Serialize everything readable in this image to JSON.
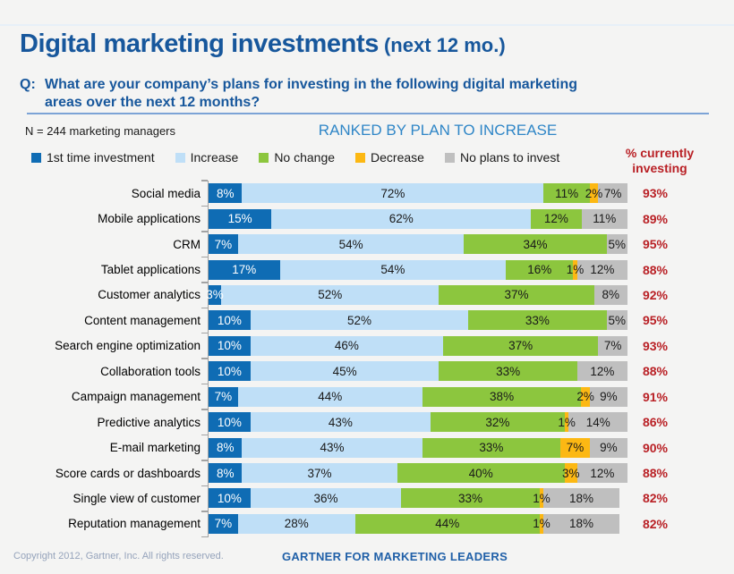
{
  "header": {
    "title": "Digital marketing investments",
    "title_suffix": "(next 12 mo.)",
    "q_label": "Q:",
    "question_line1": "What are your company’s plans for investing in the following digital marketing",
    "question_line2": "areas over the next 12 months?"
  },
  "meta": {
    "sample_note": "N = 244 marketing managers",
    "ranked_title": "RANKED BY PLAN TO INCREASE",
    "right_header_line1": "% currently",
    "right_header_line2": "investing"
  },
  "legend": {
    "items": [
      {
        "label": "1st time investment",
        "color": "#0F6CB4"
      },
      {
        "label": "Increase",
        "color": "#BFDFF7"
      },
      {
        "label": "No change",
        "color": "#8CC63E"
      },
      {
        "label": "Decrease",
        "color": "#FCB813"
      },
      {
        "label": "No plans to invest",
        "color": "#BFBFBF"
      }
    ]
  },
  "chart_data": {
    "type": "bar",
    "orientation": "horizontal",
    "stacked": true,
    "unit": "%",
    "xlim": [
      0,
      100
    ],
    "grid": false,
    "legend_position": "top",
    "title": "RANKED BY PLAN TO INCREASE",
    "categories": [
      "Social media",
      "Mobile applications",
      "CRM",
      "Tablet applications",
      "Customer analytics",
      "Content management",
      "Search engine optimization",
      "Collaboration tools",
      "Campaign management",
      "Predictive analytics",
      "E-mail marketing",
      "Score cards or dashboards",
      "Single view of customer",
      "Reputation management"
    ],
    "series": [
      {
        "name": "1st time investment",
        "color": "#0F6CB4",
        "text_color": "#FFFFFF",
        "values": [
          8,
          15,
          7,
          17,
          3,
          10,
          10,
          10,
          7,
          10,
          8,
          8,
          10,
          7
        ]
      },
      {
        "name": "Increase",
        "color": "#BFDFF7",
        "text_color": "#1A1A1A",
        "values": [
          72,
          62,
          54,
          54,
          52,
          52,
          46,
          45,
          44,
          43,
          43,
          37,
          36,
          28
        ]
      },
      {
        "name": "No change",
        "color": "#8CC63E",
        "text_color": "#1A1A1A",
        "values": [
          11,
          12,
          34,
          16,
          37,
          33,
          37,
          33,
          38,
          32,
          33,
          40,
          33,
          44
        ]
      },
      {
        "name": "Decrease",
        "color": "#FCB813",
        "text_color": "#1A1A1A",
        "values": [
          2,
          0,
          0,
          1,
          0,
          0,
          0,
          0,
          2,
          1,
          7,
          3,
          1,
          1
        ]
      },
      {
        "name": "No plans to invest",
        "color": "#BFBFBF",
        "text_color": "#1A1A1A",
        "values": [
          7,
          11,
          5,
          12,
          8,
          5,
          7,
          12,
          9,
          14,
          9,
          12,
          18,
          18
        ]
      }
    ],
    "currently_investing": {
      "label": "% currently investing",
      "color": "#B92025",
      "values": [
        93,
        89,
        95,
        88,
        92,
        95,
        93,
        88,
        91,
        86,
        90,
        88,
        82,
        82
      ]
    }
  },
  "footer": {
    "copyright": "Copyright 2012, Gartner, Inc.  All rights reserved.",
    "brand": "GARTNER FOR MARKETING LEADERS"
  },
  "colors": {
    "title": "#17579C",
    "ranked_title": "#2F86C7",
    "accent_red": "#B92025",
    "axis": "#A3A3A3",
    "background": "#F4F4F3"
  }
}
